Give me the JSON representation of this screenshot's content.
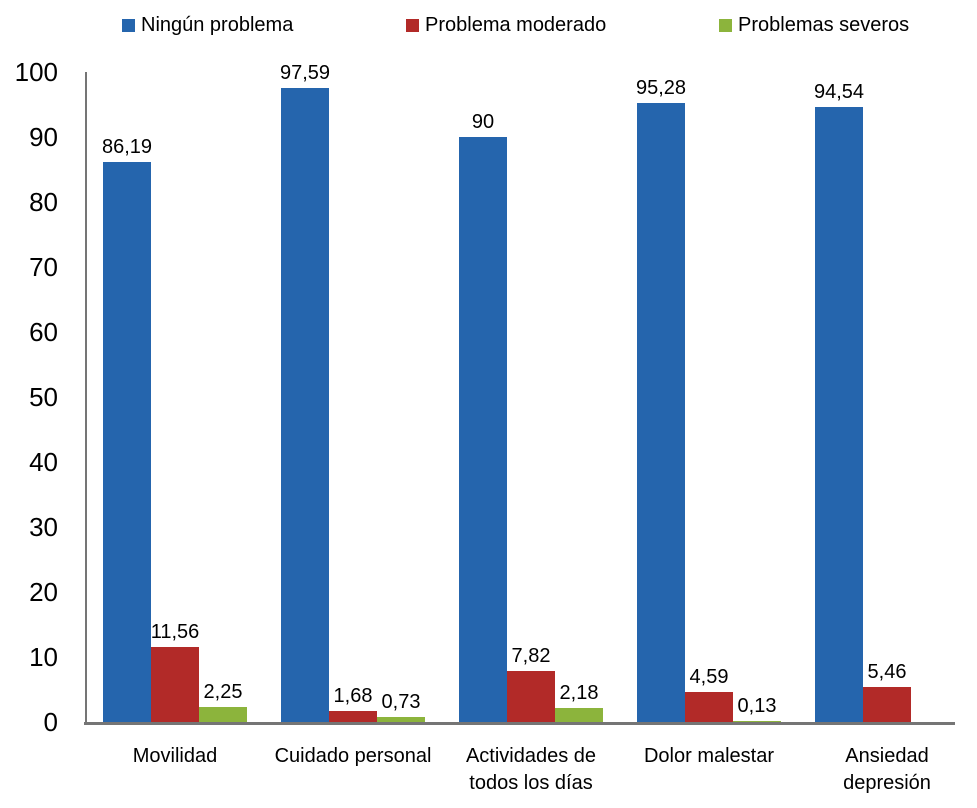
{
  "chart_data": {
    "type": "bar",
    "title": "",
    "xlabel": "",
    "ylabel": "",
    "categories": [
      "Movilidad",
      "Cuidado personal",
      "Actividades de\ntodos los días",
      "Dolor malestar",
      "Ansiedad\ndepresión"
    ],
    "series": [
      {
        "name": "Ningún problema",
        "color": "#2565AD",
        "values": [
          86.19,
          97.59,
          90,
          95.28,
          94.54
        ],
        "labels": [
          "86,19",
          "97,59",
          "90",
          "95,28",
          "94,54"
        ]
      },
      {
        "name": "Problema moderado",
        "color": "#B22A28",
        "values": [
          11.56,
          1.68,
          7.82,
          4.59,
          5.46
        ],
        "labels": [
          "11,56",
          "1,68",
          "7,82",
          "4,59",
          "5,46"
        ]
      },
      {
        "name": "Problemas severos",
        "color": "#8CB43C",
        "values": [
          2.25,
          0.73,
          2.18,
          0.13,
          null
        ],
        "labels": [
          "2,25",
          "0,73",
          "2,18",
          "0,13",
          null
        ]
      }
    ],
    "ylim": [
      0,
      100
    ],
    "yticks": [
      0,
      10,
      20,
      30,
      40,
      50,
      60,
      70,
      80,
      90,
      100
    ],
    "grid": false,
    "legend_position": "top",
    "axis_color": "#757575",
    "text_color": "#000000",
    "background_color": "#FFFFFF",
    "decimal_separator": ","
  }
}
